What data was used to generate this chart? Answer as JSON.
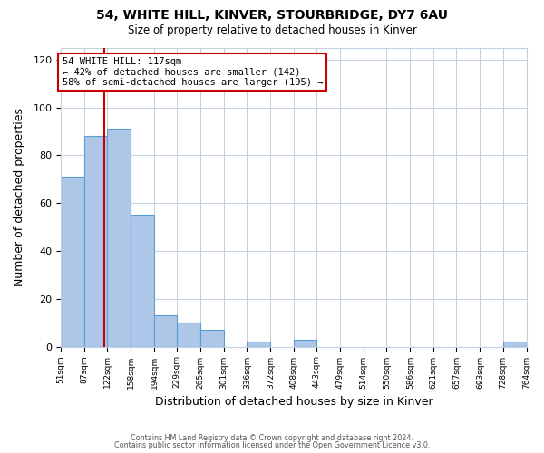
{
  "title": "54, WHITE HILL, KINVER, STOURBRIDGE, DY7 6AU",
  "subtitle": "Size of property relative to detached houses in Kinver",
  "xlabel": "Distribution of detached houses by size in Kinver",
  "ylabel": "Number of detached properties",
  "bin_edges": [
    51,
    87,
    122,
    158,
    194,
    229,
    265,
    301,
    336,
    372,
    408,
    443,
    479,
    514,
    550,
    586,
    621,
    657,
    693,
    728,
    764
  ],
  "bin_counts": [
    71,
    88,
    91,
    55,
    13,
    10,
    7,
    0,
    2,
    0,
    3,
    0,
    0,
    0,
    0,
    0,
    0,
    0,
    0,
    2
  ],
  "bar_color": "#aec6e8",
  "bar_edge_color": "#5a9fd4",
  "vline_x": 117,
  "vline_color": "#cc0000",
  "annotation_text": "54 WHITE HILL: 117sqm\n← 42% of detached houses are smaller (142)\n58% of semi-detached houses are larger (195) →",
  "annotation_box_color": "#ffffff",
  "annotation_box_edge_color": "#cc0000",
  "ylim": [
    0,
    125
  ],
  "yticks": [
    0,
    20,
    40,
    60,
    80,
    100,
    120
  ],
  "background_color": "#ffffff",
  "grid_color": "#c0d0e0",
  "footer_line1": "Contains HM Land Registry data © Crown copyright and database right 2024.",
  "footer_line2": "Contains public sector information licensed under the Open Government Licence v3.0."
}
